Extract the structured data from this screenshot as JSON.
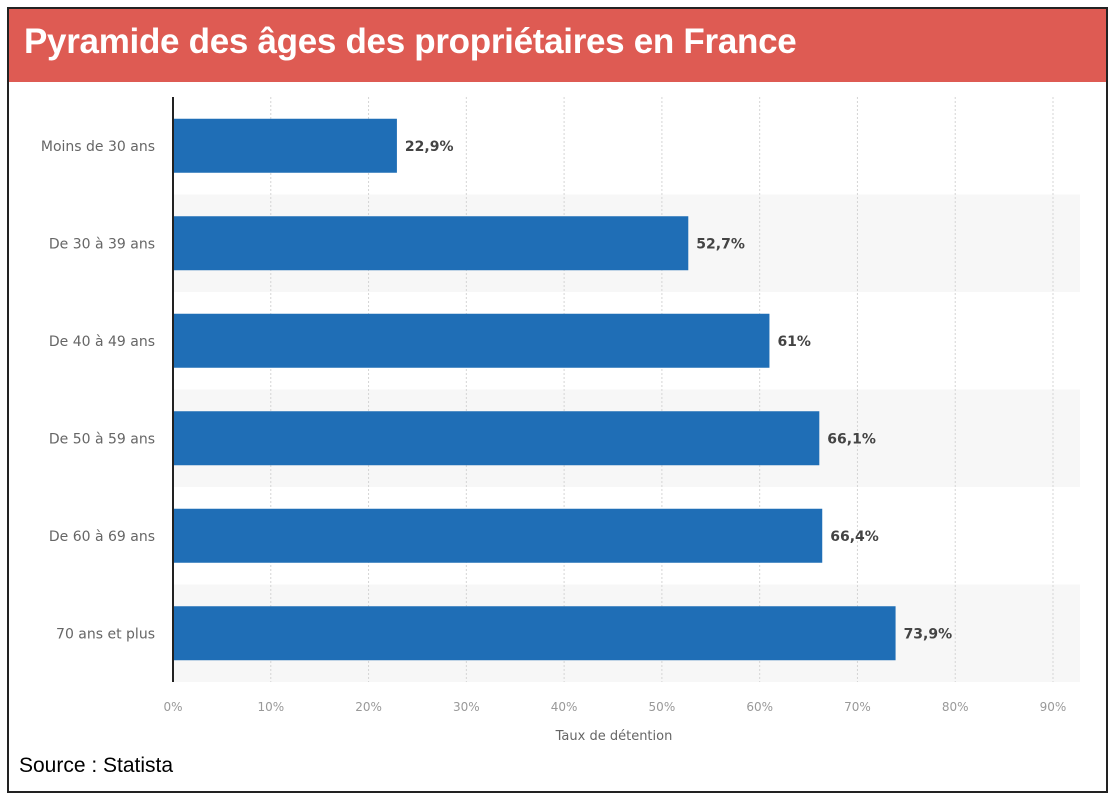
{
  "header": {
    "title": "Pyramide des âges des propriétaires en France"
  },
  "footer": {
    "source": "Source : Statista"
  },
  "chart_data": {
    "type": "bar",
    "orientation": "horizontal",
    "title": "Pyramide des âges des propriétaires en France",
    "categories": [
      "Moins de 30 ans",
      "De 30 à 39 ans",
      "De 40 à 49 ans",
      "De 50 à 59 ans",
      "De 60 à 69 ans",
      "70 ans et plus"
    ],
    "values": [
      22.9,
      52.7,
      61,
      66.1,
      66.4,
      73.9
    ],
    "data_labels": [
      "22,9%",
      "52,7%",
      "61%",
      "66,1%",
      "66,4%",
      "73,9%"
    ],
    "xlabel": "Taux de détention",
    "ylabel": "",
    "xlim": [
      0,
      90
    ],
    "xticks": [
      "0%",
      "10%",
      "20%",
      "30%",
      "40%",
      "50%",
      "60%",
      "70%",
      "80%",
      "90%"
    ],
    "grid": true,
    "bar_color": "#1f6eb6",
    "accent_color": "#de5b53"
  }
}
